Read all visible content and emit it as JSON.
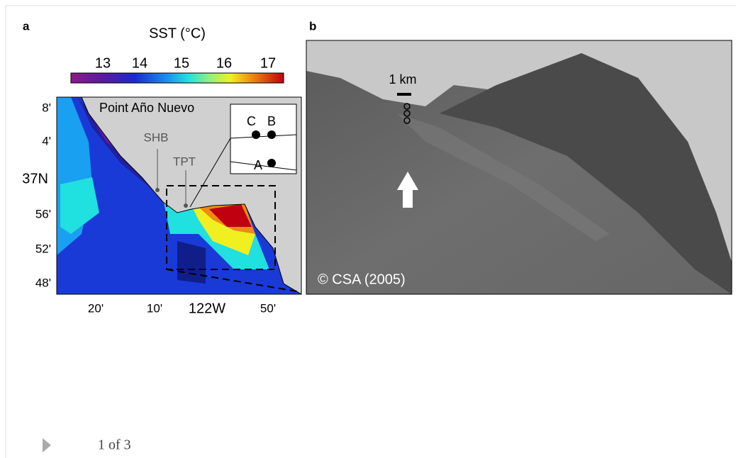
{
  "panel_a": {
    "label": "a",
    "colorbar_title": "SST (°C)",
    "colorbar_ticks": [
      "13",
      "14",
      "15",
      "16",
      "17"
    ],
    "y_labels": [
      "8'",
      "4'",
      "37N",
      "56'",
      "52'",
      "48'"
    ],
    "x_labels": [
      "20'",
      "10'",
      "122W",
      "50'"
    ],
    "place": "Point Año Nuevo",
    "stations": [
      "SHB",
      "TPT"
    ],
    "moorings": [
      "C",
      "B",
      "A"
    ]
  },
  "panel_b": {
    "label": "b",
    "scale": "1 km",
    "credit": "© CSA (2005)"
  },
  "pager": {
    "text": "1 of 3"
  }
}
